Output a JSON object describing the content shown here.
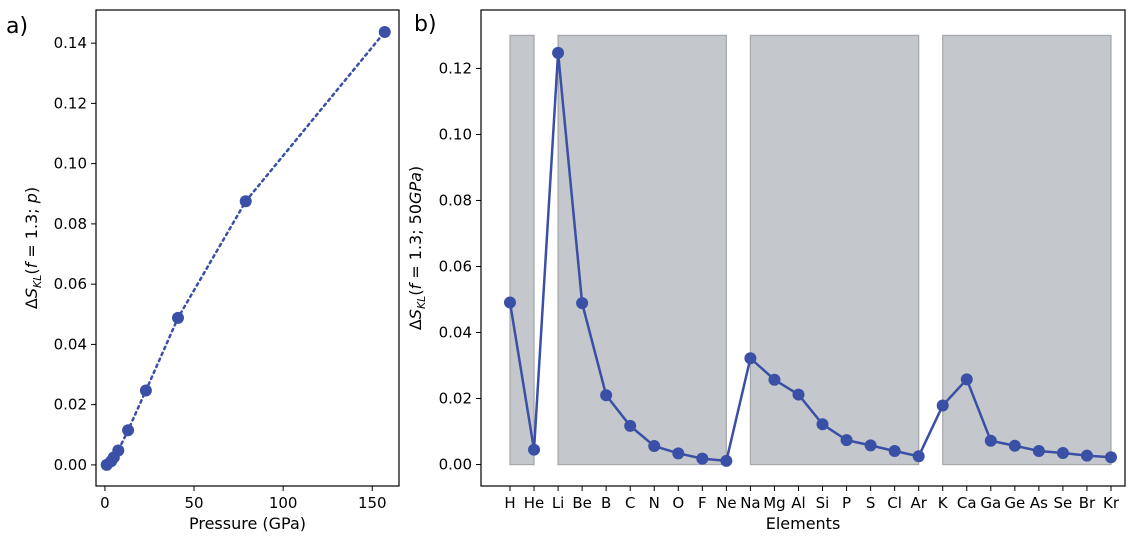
{
  "colors": {
    "series": "#3a50a6",
    "shade": "#c4c7cb",
    "shade_edge": "#a3a6aa",
    "axis": "#000000"
  },
  "panels": {
    "a_label": "a)",
    "b_label": "b)"
  },
  "chart_data": [
    {
      "type": "line",
      "panel": "a)",
      "line_style": "dotted",
      "xlabel": "Pressure (GPa)",
      "ylabel_tex": {
        "delta": "Δ",
        "s": "S",
        "sub": "KL",
        "open": "(",
        "f": "f",
        "mid": " = 1.3; ",
        "p": "p",
        "close": ")"
      },
      "xlim": [
        -5,
        165
      ],
      "ylim": [
        -0.007,
        0.151
      ],
      "xticks": [
        0,
        50,
        100,
        150
      ],
      "yticks": [
        0.0,
        0.02,
        0.04,
        0.06,
        0.08,
        0.1,
        0.12,
        0.14
      ],
      "xtick_labels": [
        "0",
        "50",
        "100",
        "150"
      ],
      "ytick_labels": [
        "0.00",
        "0.02",
        "0.04",
        "0.06",
        "0.08",
        "0.10",
        "0.12",
        "0.14"
      ],
      "x": [
        1,
        3.5,
        5,
        7.5,
        13,
        23,
        41,
        79,
        157
      ],
      "y": [
        0.0,
        0.0012,
        0.0025,
        0.0048,
        0.0115,
        0.0247,
        0.0488,
        0.0875,
        0.1437
      ]
    },
    {
      "type": "line",
      "panel": "b)",
      "line_style": "solid",
      "xlabel": "Elements",
      "ylabel_tex": {
        "delta": "Δ",
        "s": "S",
        "sub": "KL",
        "open": "(",
        "f": "f",
        "mid": " = 1.3; 50",
        "gpa": "GPa",
        "close": ")"
      },
      "ylim": [
        -0.0065,
        0.1377
      ],
      "yticks": [
        0.0,
        0.02,
        0.04,
        0.06,
        0.08,
        0.1,
        0.12
      ],
      "ytick_labels": [
        "0.00",
        "0.02",
        "0.04",
        "0.06",
        "0.08",
        "0.10",
        "0.12"
      ],
      "categories": [
        "H",
        "He",
        "Li",
        "Be",
        "B",
        "C",
        "N",
        "O",
        "F",
        "Ne",
        "Na",
        "Mg",
        "Al",
        "Si",
        "P",
        "S",
        "Cl",
        "Ar",
        "K",
        "Ca",
        "Ga",
        "Ge",
        "As",
        "Se",
        "Br",
        "Kr"
      ],
      "values": [
        0.0491,
        0.0045,
        0.1247,
        0.0489,
        0.021,
        0.0117,
        0.0056,
        0.0034,
        0.0018,
        0.0011,
        0.0322,
        0.0257,
        0.0212,
        0.0122,
        0.0074,
        0.0058,
        0.0041,
        0.0025,
        0.0179,
        0.0258,
        0.0072,
        0.0057,
        0.0041,
        0.0035,
        0.0027,
        0.0022
      ],
      "shaded_groups": [
        {
          "from": "H",
          "to": "He",
          "top": 0.13
        },
        {
          "from": "Li",
          "to": "Ne",
          "top": 0.13
        },
        {
          "from": "Na",
          "to": "Ar",
          "top": 0.13
        },
        {
          "from": "K",
          "to": "Kr",
          "top": 0.13
        }
      ]
    }
  ]
}
